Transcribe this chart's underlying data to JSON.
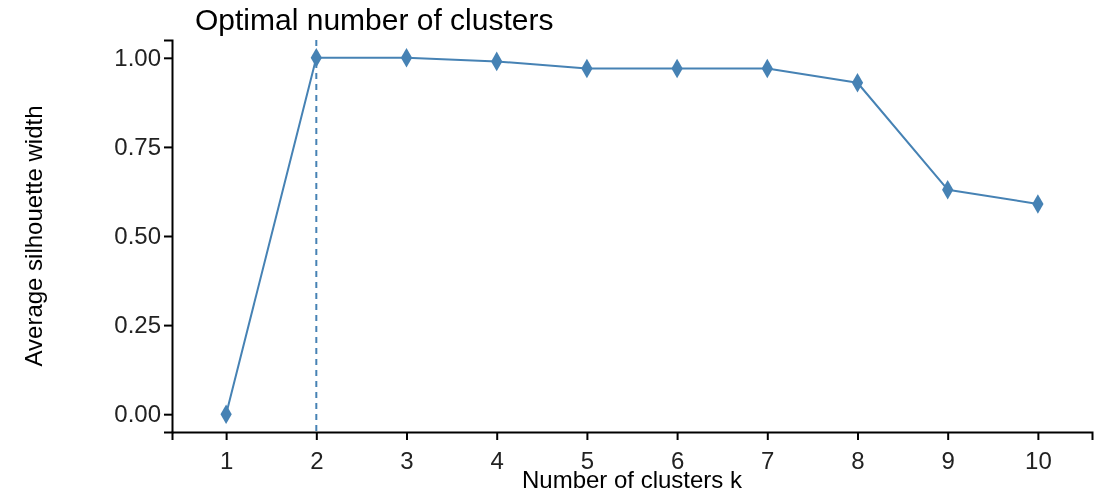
{
  "chart_data": {
    "type": "line",
    "title": "Optimal number of clusters",
    "xlabel": "Number of clusters k",
    "ylabel": "Average silhouette width",
    "x": [
      1,
      2,
      3,
      4,
      5,
      6,
      7,
      8,
      9,
      10
    ],
    "xlim": [
      0.4,
      10.6
    ],
    "xticks": [
      1,
      2,
      3,
      4,
      5,
      6,
      7,
      8,
      9,
      10
    ],
    "ylim": [
      -0.05,
      1.05
    ],
    "yticks": [
      {
        "value": 0,
        "label": "0.00"
      },
      {
        "value": 0.25,
        "label": "0.25"
      },
      {
        "value": 0.5,
        "label": "0.50"
      },
      {
        "value": 0.75,
        "label": "0.75"
      },
      {
        "value": 1,
        "label": "1.00"
      }
    ],
    "series": [
      {
        "color": "#4682b4",
        "values": [
          0,
          1.0,
          1.0,
          0.99,
          0.97,
          0.97,
          0.97,
          0.93,
          0.63,
          0.59
        ]
      }
    ],
    "ref_lines": [
      {
        "axis": "x",
        "value": 2,
        "color": "#4682b4",
        "line_style": "dashed"
      }
    ],
    "marker": "diamond",
    "line_style": "solid",
    "grid": false
  }
}
